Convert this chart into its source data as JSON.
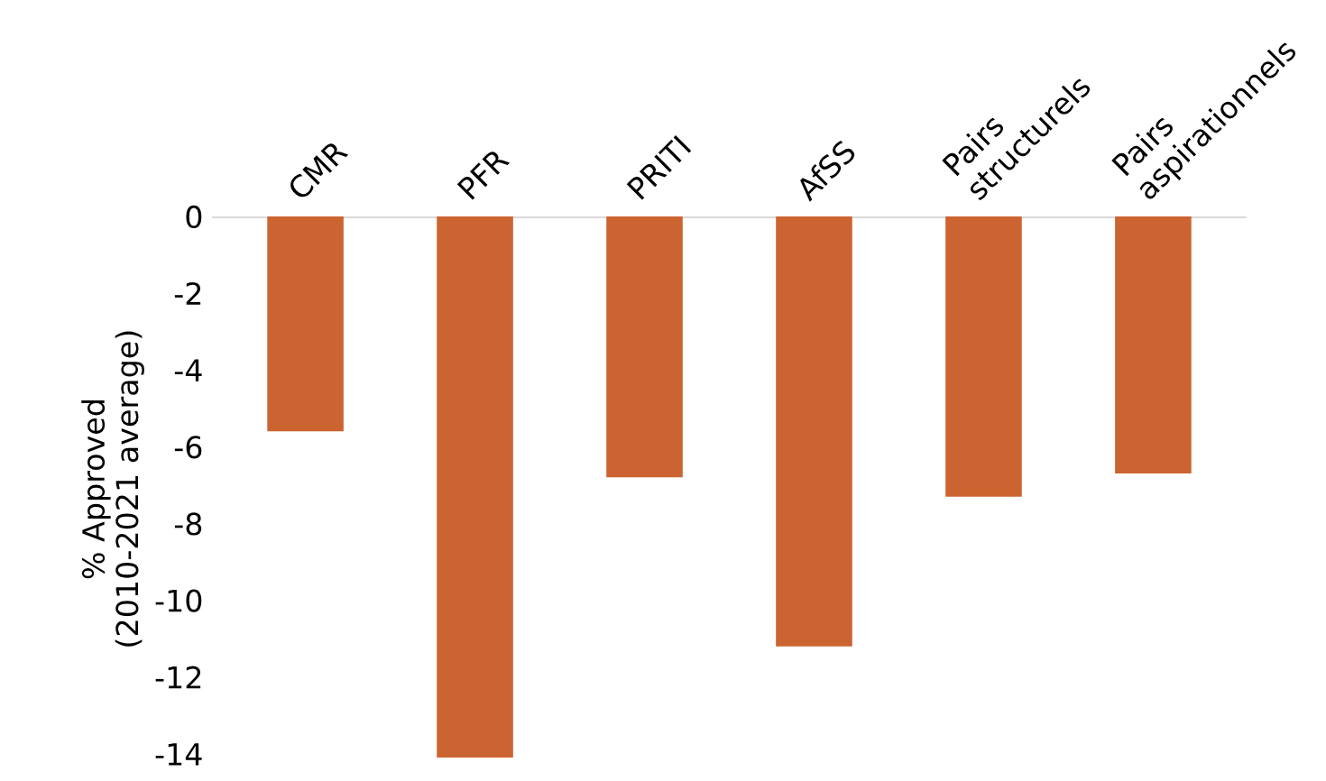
{
  "chart_data": {
    "type": "bar",
    "categories": [
      "CMR",
      "PFR",
      "PRITI",
      "AfSS",
      "Pairs\nstructurels",
      "Pairs\naspirationnels"
    ],
    "values": [
      -5.6,
      -14.1,
      -6.8,
      -11.2,
      -7.3,
      -6.7
    ],
    "color": "#cc6431",
    "ylabel": "% Approved\n(2010-2021 average)",
    "ylim": [
      -14.2,
      0
    ],
    "yticks": [
      0,
      -2,
      -4,
      -6,
      -8,
      -10,
      -12,
      -14
    ],
    "grid": false,
    "legend": false
  }
}
